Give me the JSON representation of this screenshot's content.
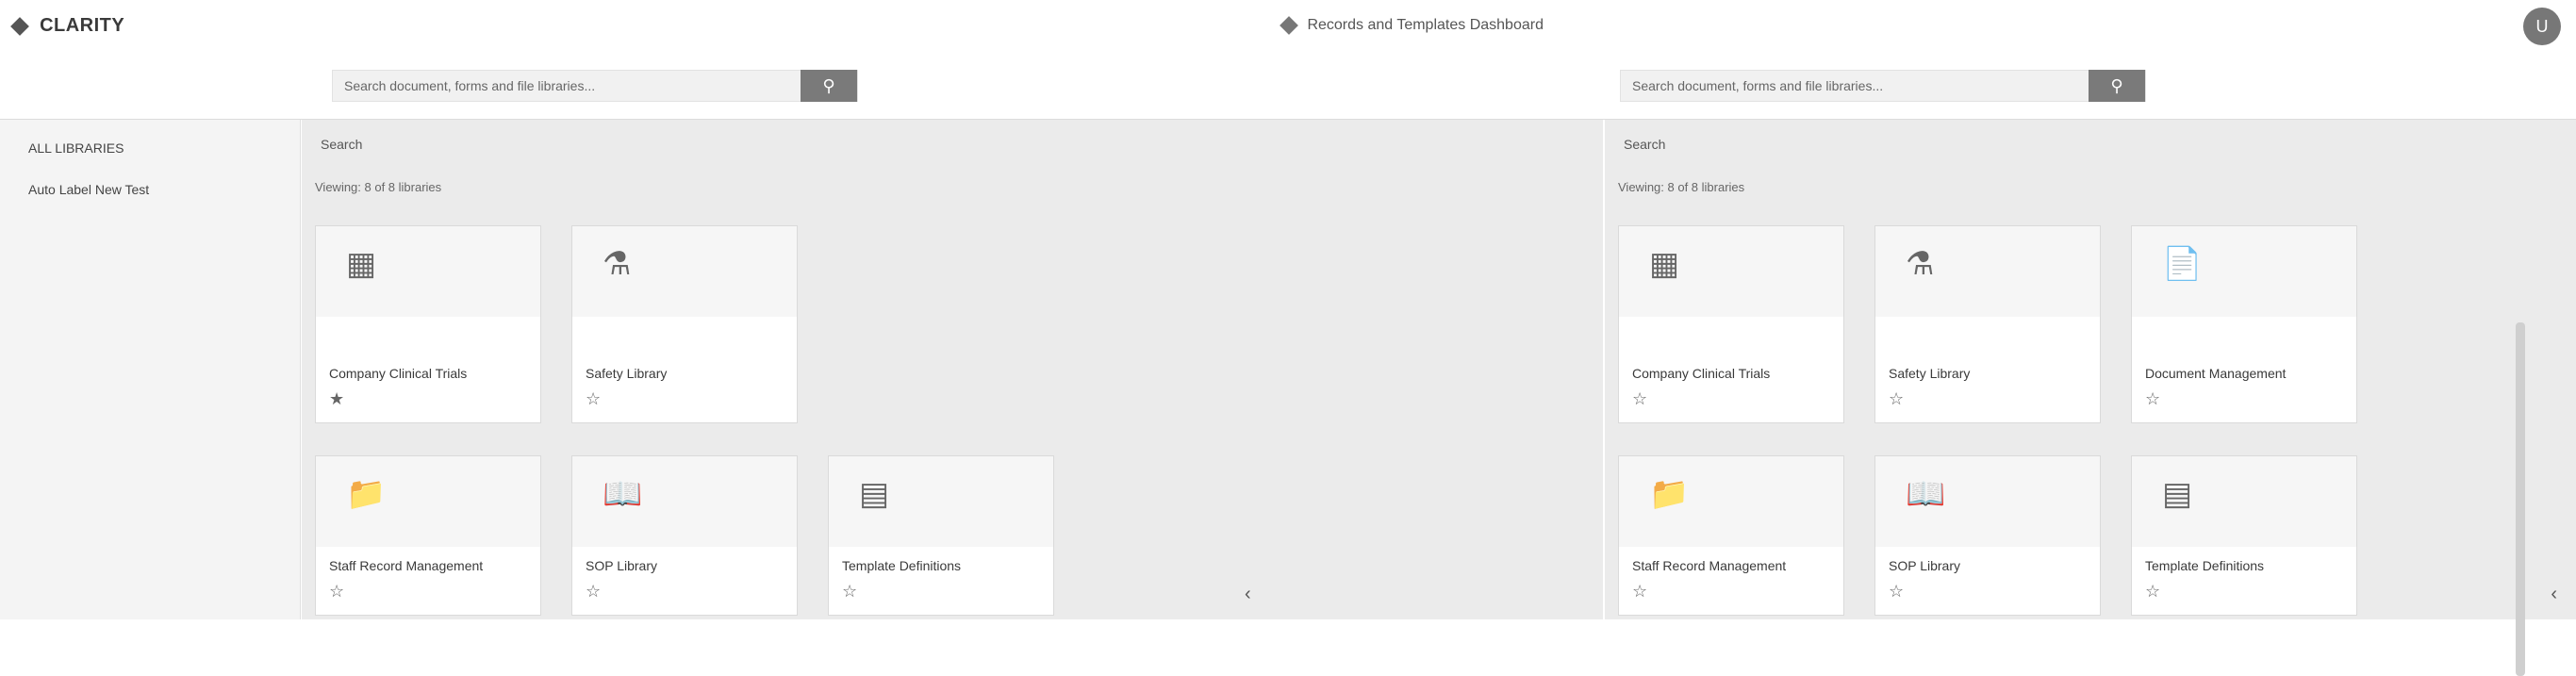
{
  "header": {
    "brand": "CLARITY",
    "center_label": "Records and Templates Dashboard",
    "avatar_initial": "U"
  },
  "search": {
    "left_placeholder": "Search document, forms and file libraries...",
    "right_placeholder": "Search document, forms and file libraries...",
    "button_icon": "search-icon"
  },
  "sidebar": {
    "items": [
      {
        "label": "ALL LIBRARIES"
      },
      {
        "label": "Auto Label New Test"
      }
    ]
  },
  "panels": [
    {
      "search_label": "Search",
      "viewing": "Viewing: 8 of 8 libraries",
      "cards": [
        {
          "title": "Company Clinical Trials",
          "meta": "★"
        },
        {
          "title": "Safety Library",
          "meta": "☆"
        },
        {
          "title": "Staff Record Management",
          "meta": "☆"
        },
        {
          "title": "SOP Library",
          "meta": "☆"
        },
        {
          "title": "Template Definitions",
          "meta": "☆"
        }
      ]
    },
    {
      "search_label": "Search",
      "viewing": "Viewing: 8 of 8 libraries",
      "cards": [
        {
          "title": "Company Clinical Trials",
          "meta": "☆"
        },
        {
          "title": "Safety Library",
          "meta": "☆"
        },
        {
          "title": "Document Management",
          "meta": "☆"
        },
        {
          "title": "Staff Record Management",
          "meta": "☆"
        },
        {
          "title": "SOP Library",
          "meta": "☆"
        },
        {
          "title": "Template Definitions",
          "meta": "☆"
        }
      ]
    }
  ]
}
